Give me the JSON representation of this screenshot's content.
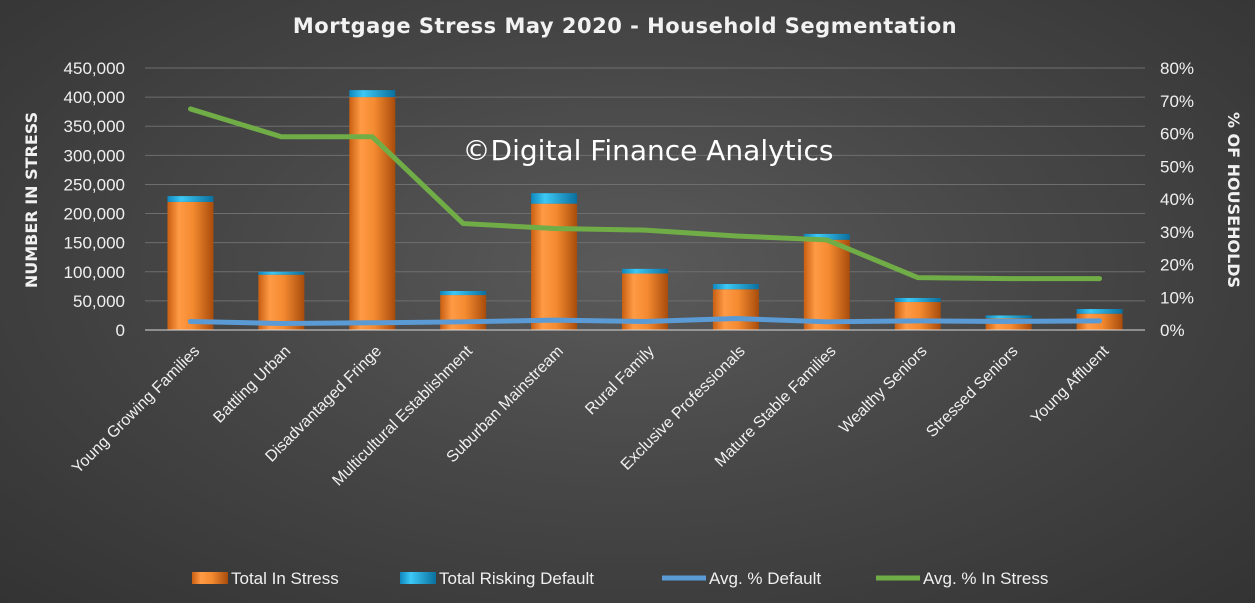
{
  "chart_data": {
    "type": "bar",
    "title": "Mortgage Stress May 2020 - Household Segmentation",
    "watermark": "©Digital Finance Analytics",
    "ylabel": "NUMBER IN STRESS",
    "y2label": "% OF HOUSEHOLDS",
    "ylim": [
      0,
      450000
    ],
    "y2lim": [
      0,
      80
    ],
    "yticks": [
      "450,000",
      "400,000",
      "350,000",
      "300,000",
      "250,000",
      "200,000",
      "150,000",
      "100,000",
      "50,000",
      "0"
    ],
    "y2ticks": [
      "80%",
      "70%",
      "60%",
      "50%",
      "40%",
      "30%",
      "20%",
      "10%",
      "0%"
    ],
    "categories": [
      "Young Growing Families",
      "Battling Urban",
      "Disadvantaged Fringe",
      "Multicultural Establishment",
      "Suburban Mainstream",
      "Rural Family",
      "Exclusive Professionals",
      "Mature Stable Families",
      "Wealthy Seniors",
      "Stressed Seniors",
      "Young Affluent"
    ],
    "series": [
      {
        "name": "Total In Stress",
        "kind": "bar",
        "axis": "left",
        "color": "#f08a2c",
        "values": [
          220000,
          95000,
          400000,
          60000,
          217000,
          97000,
          70000,
          155000,
          48000,
          20000,
          28000
        ]
      },
      {
        "name": "Total Risking Default",
        "kind": "bar-stack",
        "axis": "left",
        "color": "#1fb3e8",
        "values": [
          10000,
          5000,
          12000,
          7000,
          18000,
          8000,
          9000,
          10000,
          7000,
          5000,
          8000
        ]
      },
      {
        "name": "Avg. % Default",
        "kind": "line",
        "axis": "right",
        "color": "#5b9bd5",
        "values": [
          2.6,
          2.0,
          2.2,
          2.5,
          3.0,
          2.6,
          3.5,
          2.5,
          2.8,
          2.6,
          2.8
        ]
      },
      {
        "name": "Avg. % In Stress",
        "kind": "line",
        "axis": "right",
        "color": "#70ad47",
        "values": [
          67.5,
          59.0,
          59.0,
          32.5,
          31.0,
          30.5,
          28.7,
          27.5,
          16.0,
          15.7,
          15.7
        ]
      }
    ],
    "legend_position": "bottom",
    "grid": true
  }
}
